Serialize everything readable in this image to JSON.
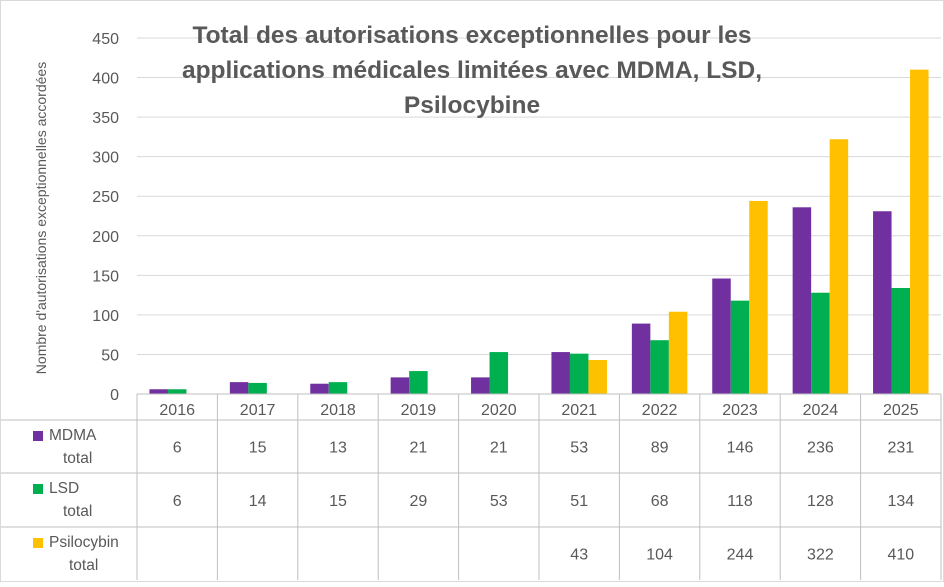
{
  "chart_data": {
    "type": "bar",
    "title_lines": [
      "Total des autorisations exceptionnelles pour les",
      "applications médicales limitées avec MDMA, LSD,",
      "Psilocybine"
    ],
    "ylabel": "Nombre d'autorisations exceptionnelles accordées",
    "xlabel": "",
    "ylim": [
      0,
      450
    ],
    "yticks": [
      0,
      50,
      100,
      150,
      200,
      250,
      300,
      350,
      400,
      450
    ],
    "categories": [
      "2016",
      "2017",
      "2018",
      "2019",
      "2020",
      "2021",
      "2022",
      "2023",
      "2024",
      "2025"
    ],
    "series": [
      {
        "name": "MDMA total",
        "label_lines": [
          "MDMA",
          "total"
        ],
        "color": "#7030A0",
        "values": [
          6,
          15,
          13,
          21,
          21,
          53,
          89,
          146,
          236,
          231
        ]
      },
      {
        "name": "LSD total",
        "label_lines": [
          "LSD",
          "total"
        ],
        "color": "#00B050",
        "values": [
          6,
          14,
          15,
          29,
          53,
          51,
          68,
          118,
          128,
          134
        ]
      },
      {
        "name": "Psilocybin total",
        "label_lines": [
          "Psilocybin",
          "total"
        ],
        "color": "#FFC000",
        "values": [
          null,
          null,
          null,
          null,
          null,
          43,
          104,
          244,
          322,
          410
        ]
      }
    ],
    "data_table": true,
    "grid": true
  }
}
